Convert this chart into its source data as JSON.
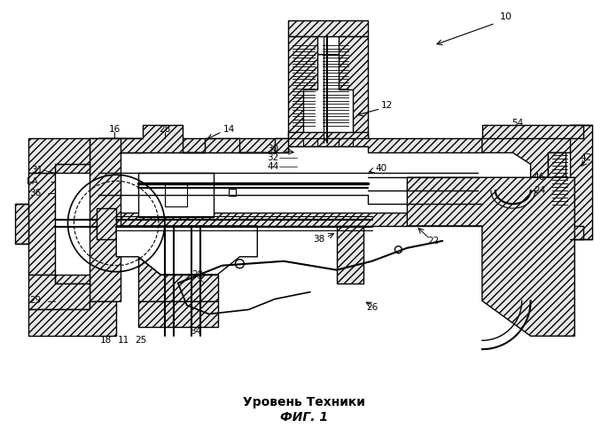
{
  "title_line1": "Уровень Техники",
  "title_line2": "ФИГ. 1",
  "bg": "#ffffff",
  "lc": "#000000",
  "hatch_fc": "#e8e8e8",
  "fig_width": 6.87,
  "fig_height": 5.0,
  "dpi": 100
}
